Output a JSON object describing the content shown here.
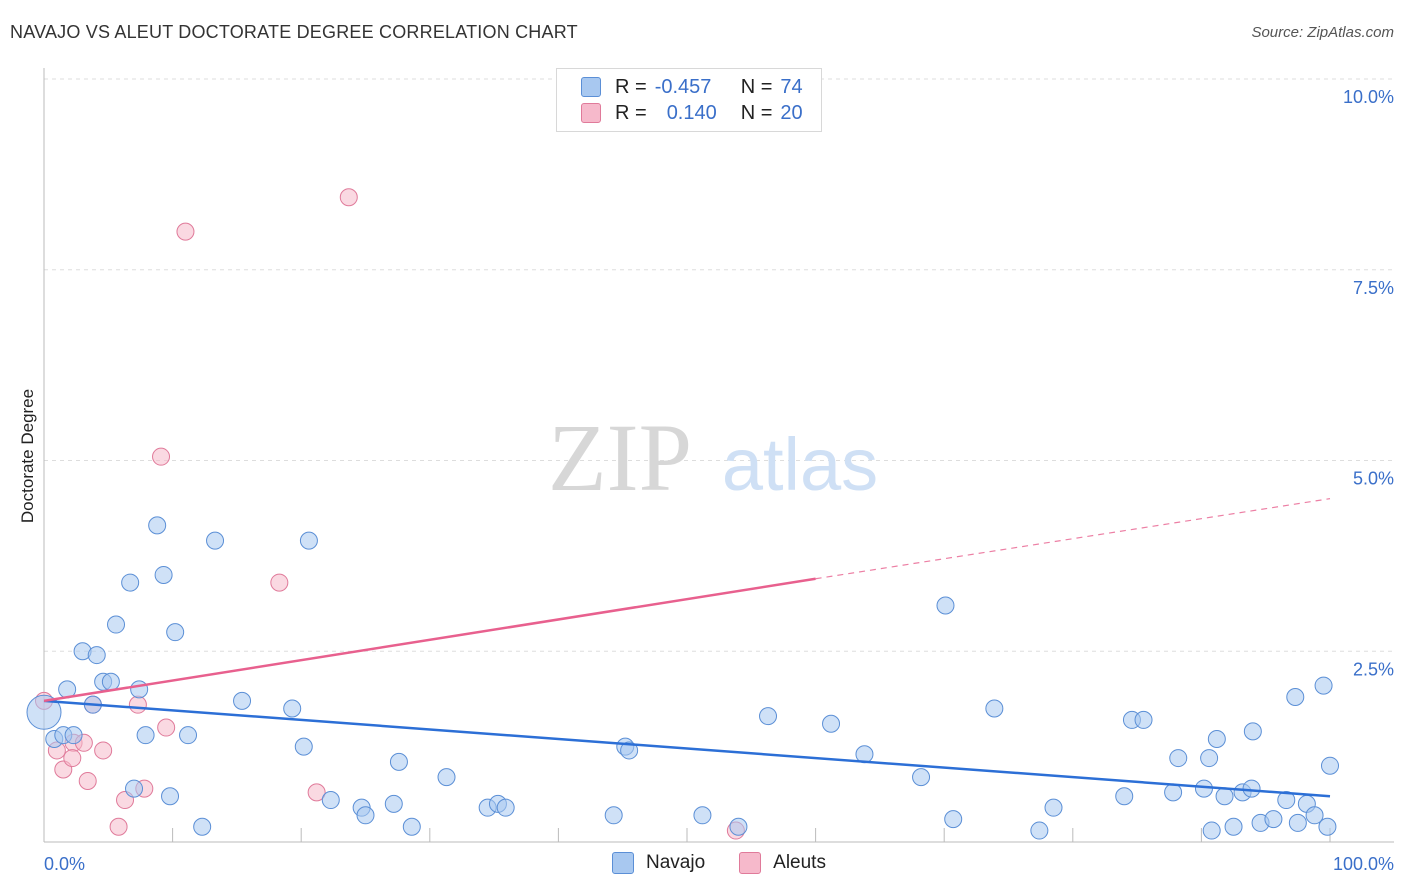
{
  "header": {
    "title": "NAVAJO VS ALEUT DOCTORATE DEGREE CORRELATION CHART",
    "source": "Source: ZipAtlas.com"
  },
  "watermark": {
    "zip": "ZIP",
    "atlas": "atlas"
  },
  "legend_top": {
    "rows": [
      {
        "r_label": "R =",
        "r_value": "-0.457",
        "n_label": "N =",
        "n_value": "74",
        "color": "#a8c8f0"
      },
      {
        "r_label": "R =",
        "r_value": "0.140",
        "n_label": "N =",
        "n_value": "20",
        "color": "#f6b9cb"
      }
    ]
  },
  "legend_bottom": {
    "items": [
      {
        "label": "Navajo",
        "color": "#a8c8f0"
      },
      {
        "label": "Aleuts",
        "color": "#f6b9cb"
      }
    ]
  },
  "colors": {
    "navajo_fill": "#a8c8f0",
    "navajo_stroke": "#5b8fd6",
    "navajo_line": "#2c6fd6",
    "aleut_fill": "#f6b9cb",
    "aleut_stroke": "#e07a9a",
    "aleut_line": "#e8608e",
    "tick_label": "#3a6fc9",
    "grid": "#dddddd"
  },
  "chart_data": {
    "type": "scatter",
    "title": "NAVAJO VS ALEUT DOCTORATE DEGREE CORRELATION CHART",
    "xlabel": "",
    "ylabel": "Doctorate Degree",
    "xlim": [
      0,
      100
    ],
    "ylim": [
      0,
      10
    ],
    "x_tick_labels": [
      "0.0%",
      "100.0%"
    ],
    "y_ticks": [
      2.5,
      5.0,
      7.5,
      10.0
    ],
    "y_tick_labels": [
      "2.5%",
      "5.0%",
      "7.5%",
      "10.0%"
    ],
    "grid": true,
    "legend": "bottom-center",
    "series": [
      {
        "name": "Navajo",
        "r": -0.457,
        "n": 74,
        "trend": {
          "x": [
            0,
            100
          ],
          "y": [
            1.85,
            0.6
          ]
        },
        "points": [
          [
            0.0,
            1.7
          ],
          [
            0.8,
            1.35
          ],
          [
            1.5,
            1.4
          ],
          [
            2.3,
            1.4
          ],
          [
            1.8,
            2.0
          ],
          [
            3.0,
            2.5
          ],
          [
            4.1,
            2.45
          ],
          [
            4.6,
            2.1
          ],
          [
            5.2,
            2.1
          ],
          [
            3.8,
            1.8
          ],
          [
            5.6,
            2.85
          ],
          [
            6.7,
            3.4
          ],
          [
            7.4,
            2.0
          ],
          [
            7.9,
            1.4
          ],
          [
            8.8,
            4.15
          ],
          [
            9.3,
            3.5
          ],
          [
            10.2,
            2.75
          ],
          [
            11.2,
            1.4
          ],
          [
            7.0,
            0.7
          ],
          [
            9.8,
            0.6
          ],
          [
            12.3,
            0.2
          ],
          [
            13.3,
            3.95
          ],
          [
            15.4,
            1.85
          ],
          [
            19.3,
            1.75
          ],
          [
            20.2,
            1.25
          ],
          [
            20.6,
            3.95
          ],
          [
            22.3,
            0.55
          ],
          [
            24.7,
            0.45
          ],
          [
            25.0,
            0.35
          ],
          [
            27.2,
            0.5
          ],
          [
            27.6,
            1.05
          ],
          [
            28.6,
            0.2
          ],
          [
            31.3,
            0.85
          ],
          [
            34.5,
            0.45
          ],
          [
            35.3,
            0.5
          ],
          [
            35.9,
            0.45
          ],
          [
            44.3,
            0.35
          ],
          [
            45.2,
            1.25
          ],
          [
            45.5,
            1.2
          ],
          [
            51.2,
            0.35
          ],
          [
            56.3,
            1.65
          ],
          [
            61.2,
            1.55
          ],
          [
            63.8,
            1.15
          ],
          [
            68.2,
            0.85
          ],
          [
            70.1,
            3.1
          ],
          [
            70.7,
            0.3
          ],
          [
            73.9,
            1.75
          ],
          [
            77.4,
            0.15
          ],
          [
            78.5,
            0.45
          ],
          [
            84.0,
            0.6
          ],
          [
            84.6,
            1.6
          ],
          [
            85.5,
            1.6
          ],
          [
            87.8,
            0.65
          ],
          [
            88.2,
            1.1
          ],
          [
            90.2,
            0.7
          ],
          [
            90.6,
            1.1
          ],
          [
            90.8,
            0.15
          ],
          [
            91.2,
            1.35
          ],
          [
            91.8,
            0.6
          ],
          [
            92.5,
            0.2
          ],
          [
            93.2,
            0.65
          ],
          [
            93.9,
            0.7
          ],
          [
            94.0,
            1.45
          ],
          [
            94.6,
            0.25
          ],
          [
            95.6,
            0.3
          ],
          [
            96.6,
            0.55
          ],
          [
            97.3,
            1.9
          ],
          [
            97.5,
            0.25
          ],
          [
            98.2,
            0.5
          ],
          [
            98.8,
            0.35
          ],
          [
            99.5,
            2.05
          ],
          [
            99.8,
            0.2
          ],
          [
            100.0,
            1.0
          ],
          [
            54.0,
            0.2
          ]
        ]
      },
      {
        "name": "Aleuts",
        "r": 0.14,
        "n": 20,
        "trend": {
          "x": [
            0,
            60
          ],
          "y": [
            1.85,
            3.45
          ],
          "dashed_x": [
            60,
            100
          ],
          "dashed_y": [
            3.45,
            4.5
          ]
        },
        "points": [
          [
            0.0,
            1.85
          ],
          [
            1.0,
            1.2
          ],
          [
            1.5,
            0.95
          ],
          [
            2.3,
            1.3
          ],
          [
            2.2,
            1.1
          ],
          [
            3.1,
            1.3
          ],
          [
            3.4,
            0.8
          ],
          [
            3.8,
            1.8
          ],
          [
            4.6,
            1.2
          ],
          [
            5.8,
            0.2
          ],
          [
            6.3,
            0.55
          ],
          [
            7.3,
            1.8
          ],
          [
            7.8,
            0.7
          ],
          [
            9.1,
            5.05
          ],
          [
            9.5,
            1.5
          ],
          [
            11.0,
            8.0
          ],
          [
            18.3,
            3.4
          ],
          [
            21.2,
            0.65
          ],
          [
            23.7,
            8.45
          ],
          [
            53.8,
            0.15
          ]
        ]
      }
    ]
  }
}
